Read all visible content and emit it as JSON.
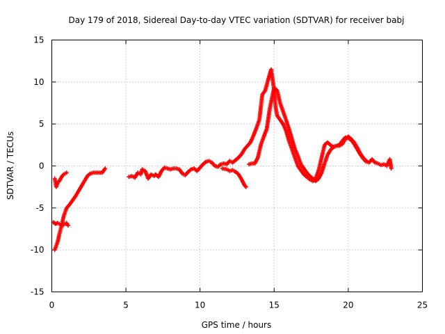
{
  "chart_data": {
    "type": "scatter",
    "title": "Day 179 of 2018, Sidereal Day-to-day VTEC variation (SDTVAR) for receiver babj",
    "xlabel": "GPS time / hours",
    "ylabel": "SDTVAR / TECUs",
    "xlim": [
      0,
      25
    ],
    "ylim": [
      -15,
      15
    ],
    "xticks": [
      "0",
      "5",
      "10",
      "15",
      "20",
      "25"
    ],
    "yticks": [
      "-15",
      "-10",
      "-5",
      "0",
      "5",
      "10",
      "15"
    ],
    "grid": true,
    "marker": "plus",
    "color": "#ff0000",
    "series": [
      {
        "name": "trace-a",
        "points": [
          [
            0.2,
            -1.5
          ],
          [
            0.3,
            -2.5
          ],
          [
            0.4,
            -2.0
          ],
          [
            0.5,
            -1.8
          ],
          [
            0.6,
            -1.5
          ],
          [
            0.7,
            -1.2
          ],
          [
            0.8,
            -1.0
          ],
          [
            0.9,
            -0.9
          ],
          [
            1.0,
            -0.8
          ]
        ]
      },
      {
        "name": "trace-b",
        "points": [
          [
            0.1,
            -6.7
          ],
          [
            0.25,
            -6.9
          ],
          [
            0.4,
            -6.8
          ],
          [
            0.6,
            -7.0
          ],
          [
            0.8,
            -7.0
          ],
          [
            1.0,
            -6.8
          ],
          [
            1.1,
            -7.1
          ]
        ]
      },
      {
        "name": "trace-c",
        "points": [
          [
            0.2,
            -10.0
          ],
          [
            0.3,
            -9.5
          ],
          [
            0.4,
            -9.0
          ],
          [
            0.5,
            -8.2
          ],
          [
            0.6,
            -7.5
          ],
          [
            0.7,
            -6.8
          ],
          [
            0.8,
            -6.0
          ],
          [
            0.9,
            -5.5
          ],
          [
            1.0,
            -5.0
          ],
          [
            1.2,
            -4.6
          ],
          [
            1.4,
            -4.1
          ],
          [
            1.6,
            -3.6
          ],
          [
            1.8,
            -3.0
          ],
          [
            2.0,
            -2.4
          ],
          [
            2.2,
            -1.8
          ],
          [
            2.4,
            -1.2
          ],
          [
            2.6,
            -0.9
          ],
          [
            2.8,
            -0.8
          ],
          [
            3.0,
            -0.8
          ],
          [
            3.2,
            -0.8
          ],
          [
            3.4,
            -0.8
          ],
          [
            3.6,
            -0.3
          ]
        ]
      },
      {
        "name": "trace-d",
        "points": [
          [
            5.2,
            -1.3
          ],
          [
            5.4,
            -1.2
          ],
          [
            5.6,
            -1.4
          ],
          [
            5.8,
            -0.8
          ],
          [
            6.0,
            -1.0
          ],
          [
            6.1,
            -0.4
          ],
          [
            6.3,
            -0.6
          ],
          [
            6.5,
            -1.5
          ],
          [
            6.7,
            -1.0
          ],
          [
            6.9,
            -1.2
          ],
          [
            7.0,
            -1.0
          ],
          [
            7.2,
            -1.3
          ],
          [
            7.4,
            -0.6
          ],
          [
            7.6,
            -0.2
          ],
          [
            7.8,
            -0.3
          ],
          [
            8.0,
            -0.4
          ],
          [
            8.2,
            -0.3
          ],
          [
            8.4,
            -0.3
          ],
          [
            8.6,
            -0.4
          ],
          [
            8.8,
            -0.9
          ],
          [
            9.0,
            -1.1
          ],
          [
            9.2,
            -0.7
          ],
          [
            9.4,
            -0.4
          ],
          [
            9.6,
            -0.3
          ],
          [
            9.8,
            -0.6
          ],
          [
            10.0,
            -0.2
          ],
          [
            10.2,
            0.2
          ],
          [
            10.4,
            0.5
          ],
          [
            10.6,
            0.6
          ],
          [
            10.8,
            0.4
          ],
          [
            11.0,
            0.0
          ],
          [
            11.2,
            -0.1
          ],
          [
            11.4,
            0.2
          ],
          [
            11.6,
            0.3
          ],
          [
            11.8,
            0.2
          ],
          [
            12.0,
            0.6
          ],
          [
            12.2,
            0.4
          ],
          [
            12.4,
            0.7
          ],
          [
            12.6,
            1.0
          ],
          [
            12.8,
            1.4
          ],
          [
            13.0,
            2.0
          ],
          [
            13.2,
            2.4
          ],
          [
            13.4,
            2.8
          ],
          [
            13.6,
            3.6
          ],
          [
            13.8,
            4.5
          ],
          [
            14.0,
            5.5
          ],
          [
            14.2,
            8.5
          ],
          [
            14.4,
            9.0
          ],
          [
            14.6,
            10.3
          ],
          [
            14.8,
            11.5
          ],
          [
            15.0,
            9.0
          ],
          [
            15.1,
            7.0
          ],
          [
            15.2,
            6.0
          ],
          [
            15.4,
            5.5
          ],
          [
            15.6,
            5.0
          ],
          [
            15.8,
            4.2
          ],
          [
            16.0,
            3.0
          ],
          [
            16.2,
            2.0
          ],
          [
            16.4,
            1.0
          ],
          [
            16.6,
            0.0
          ],
          [
            16.8,
            -0.5
          ],
          [
            17.0,
            -1.0
          ],
          [
            17.2,
            -1.3
          ],
          [
            17.4,
            -1.6
          ],
          [
            17.6,
            -1.8
          ],
          [
            17.8,
            -1.5
          ],
          [
            18.0,
            -0.5
          ],
          [
            18.2,
            1.0
          ],
          [
            18.4,
            2.5
          ],
          [
            18.6,
            2.8
          ],
          [
            18.8,
            2.5
          ],
          [
            19.0,
            2.2
          ],
          [
            19.2,
            2.4
          ],
          [
            19.4,
            2.4
          ],
          [
            19.6,
            2.6
          ],
          [
            19.8,
            3.2
          ],
          [
            20.0,
            3.5
          ],
          [
            20.2,
            3.2
          ],
          [
            20.4,
            2.8
          ],
          [
            20.6,
            2.2
          ],
          [
            20.8,
            1.5
          ],
          [
            21.0,
            1.0
          ],
          [
            21.2,
            0.6
          ],
          [
            21.4,
            0.4
          ],
          [
            21.6,
            0.8
          ],
          [
            21.8,
            0.4
          ],
          [
            22.0,
            0.3
          ],
          [
            22.2,
            0.1
          ],
          [
            22.4,
            0.2
          ],
          [
            22.6,
            0.0
          ],
          [
            22.8,
            0.8
          ],
          [
            22.9,
            -0.3
          ]
        ]
      },
      {
        "name": "trace-e",
        "points": [
          [
            11.5,
            -0.3
          ],
          [
            11.8,
            -0.4
          ],
          [
            12.0,
            -0.6
          ],
          [
            12.2,
            -0.5
          ],
          [
            12.4,
            -0.7
          ],
          [
            12.6,
            -1.0
          ],
          [
            12.8,
            -1.6
          ],
          [
            13.0,
            -2.3
          ],
          [
            13.1,
            -2.5
          ]
        ]
      },
      {
        "name": "trace-f",
        "points": [
          [
            13.3,
            0.2
          ],
          [
            13.5,
            0.3
          ],
          [
            13.7,
            0.3
          ],
          [
            13.9,
            1.0
          ],
          [
            14.1,
            2.5
          ],
          [
            14.3,
            3.5
          ],
          [
            14.5,
            4.4
          ],
          [
            14.7,
            6.8
          ],
          [
            14.9,
            8.5
          ],
          [
            15.0,
            9.3
          ],
          [
            15.2,
            9.0
          ],
          [
            15.4,
            7.5
          ],
          [
            15.6,
            6.5
          ],
          [
            15.8,
            5.5
          ],
          [
            16.0,
            4.4
          ],
          [
            16.2,
            3.2
          ],
          [
            16.4,
            2.0
          ],
          [
            16.6,
            1.2
          ],
          [
            16.8,
            0.2
          ],
          [
            17.0,
            -0.3
          ],
          [
            17.2,
            -0.8
          ],
          [
            17.4,
            -1.2
          ],
          [
            17.6,
            -1.5
          ],
          [
            17.8,
            -1.8
          ],
          [
            18.0,
            -1.5
          ],
          [
            18.2,
            -0.8
          ],
          [
            18.4,
            0.3
          ],
          [
            18.6,
            1.3
          ],
          [
            18.8,
            1.9
          ],
          [
            19.0,
            2.3
          ],
          [
            19.2,
            2.4
          ],
          [
            19.4,
            2.5
          ],
          [
            19.6,
            3.0
          ],
          [
            19.8,
            3.4
          ],
          [
            20.0,
            3.3
          ],
          [
            20.2,
            3.1
          ],
          [
            20.4,
            2.6
          ],
          [
            20.6,
            2.0
          ],
          [
            20.8,
            1.4
          ],
          [
            21.0,
            0.9
          ],
          [
            21.2,
            0.5
          ]
        ]
      }
    ]
  }
}
